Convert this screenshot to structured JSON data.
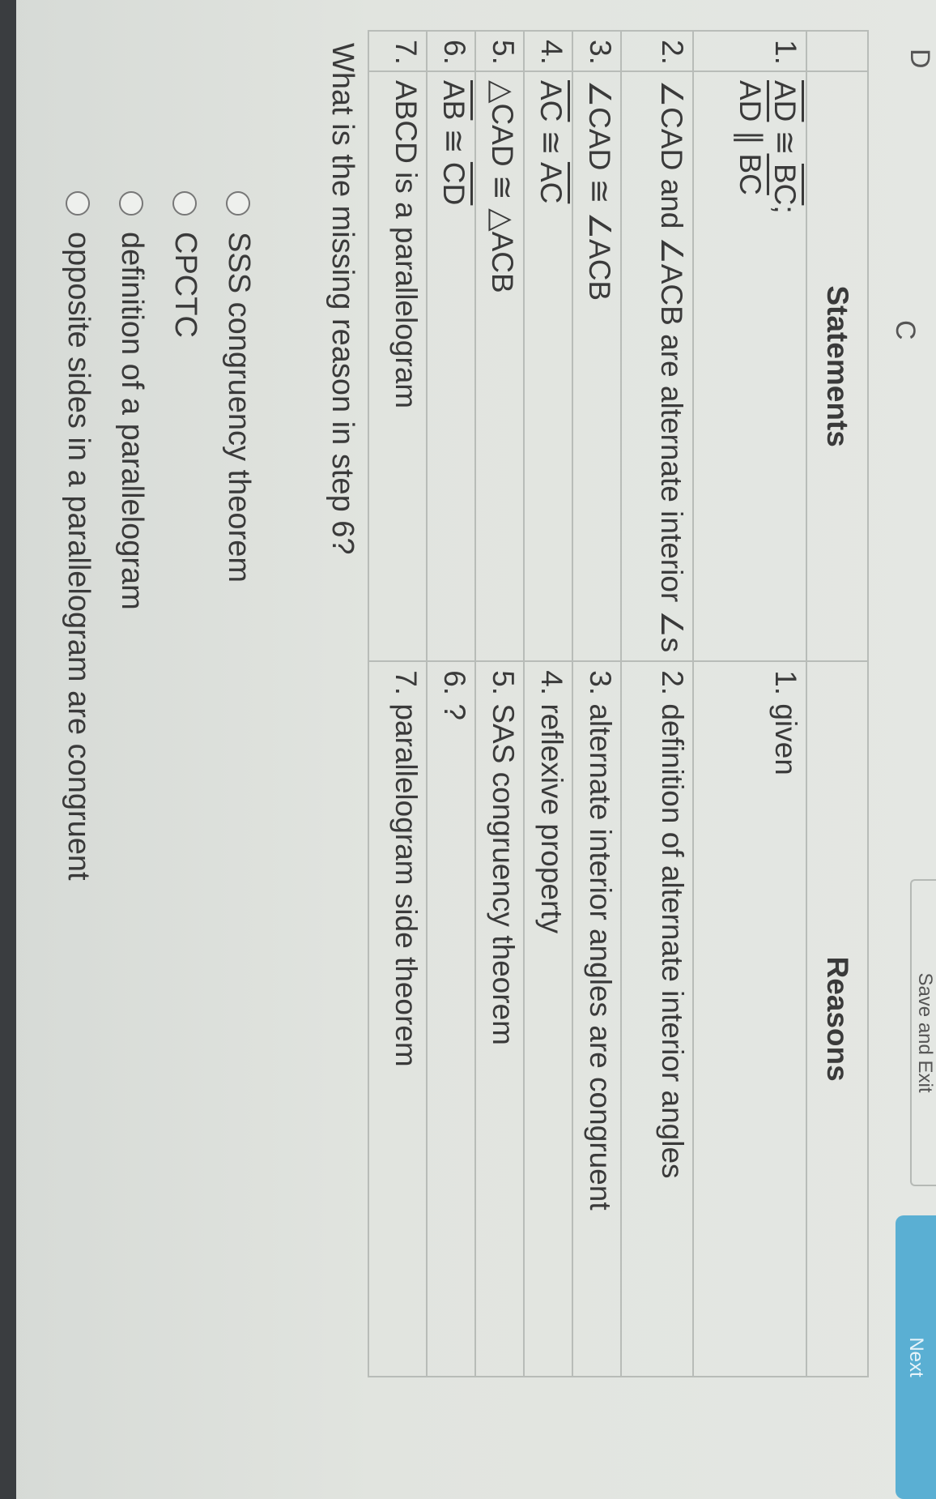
{
  "figure_labels": {
    "d": "D",
    "c": "C"
  },
  "table": {
    "headers": {
      "number": "",
      "statements": "Statements",
      "reasons": "Reasons"
    },
    "rows": [
      {
        "num": "1.",
        "statement_parts": [
          "AD",
          " ≅ ",
          "BC",
          ";"
        ],
        "statement_line2": [
          "AD",
          " ∥ ",
          "BC"
        ],
        "reason": "1. given"
      },
      {
        "num": "2.",
        "statement": "∠CAD and ∠ACB are alternate interior ∠s",
        "reason": "2. definition of alternate interior angles"
      },
      {
        "num": "3.",
        "statement": "∠CAD ≅ ∠ACB",
        "reason": "3. alternate interior angles are congruent"
      },
      {
        "num": "4.",
        "statement_parts": [
          "AC",
          " ≅ ",
          "AC"
        ],
        "reason": "4. reflexive property"
      },
      {
        "num": "5.",
        "statement": "△CAD ≅ △ACB",
        "reason": "5. SAS congruency theorem"
      },
      {
        "num": "6.",
        "statement_parts": [
          "AB",
          " ≅ ",
          "CD"
        ],
        "reason": "6. ?"
      },
      {
        "num": "7.",
        "statement": "ABCD is a parallelogram",
        "reason": "7. parallelogram side theorem"
      }
    ]
  },
  "question": "What is the missing reason in step 6?",
  "options": [
    "SSS congruency theorem",
    "CPCTC",
    "definition of a parallelogram",
    "opposite sides in a parallelogram are congruent"
  ],
  "buttons": {
    "save_exit": "Save and Exit",
    "next": "Next"
  },
  "colors": {
    "next_button": "#5aafd3",
    "border": "#b8bcb8"
  }
}
